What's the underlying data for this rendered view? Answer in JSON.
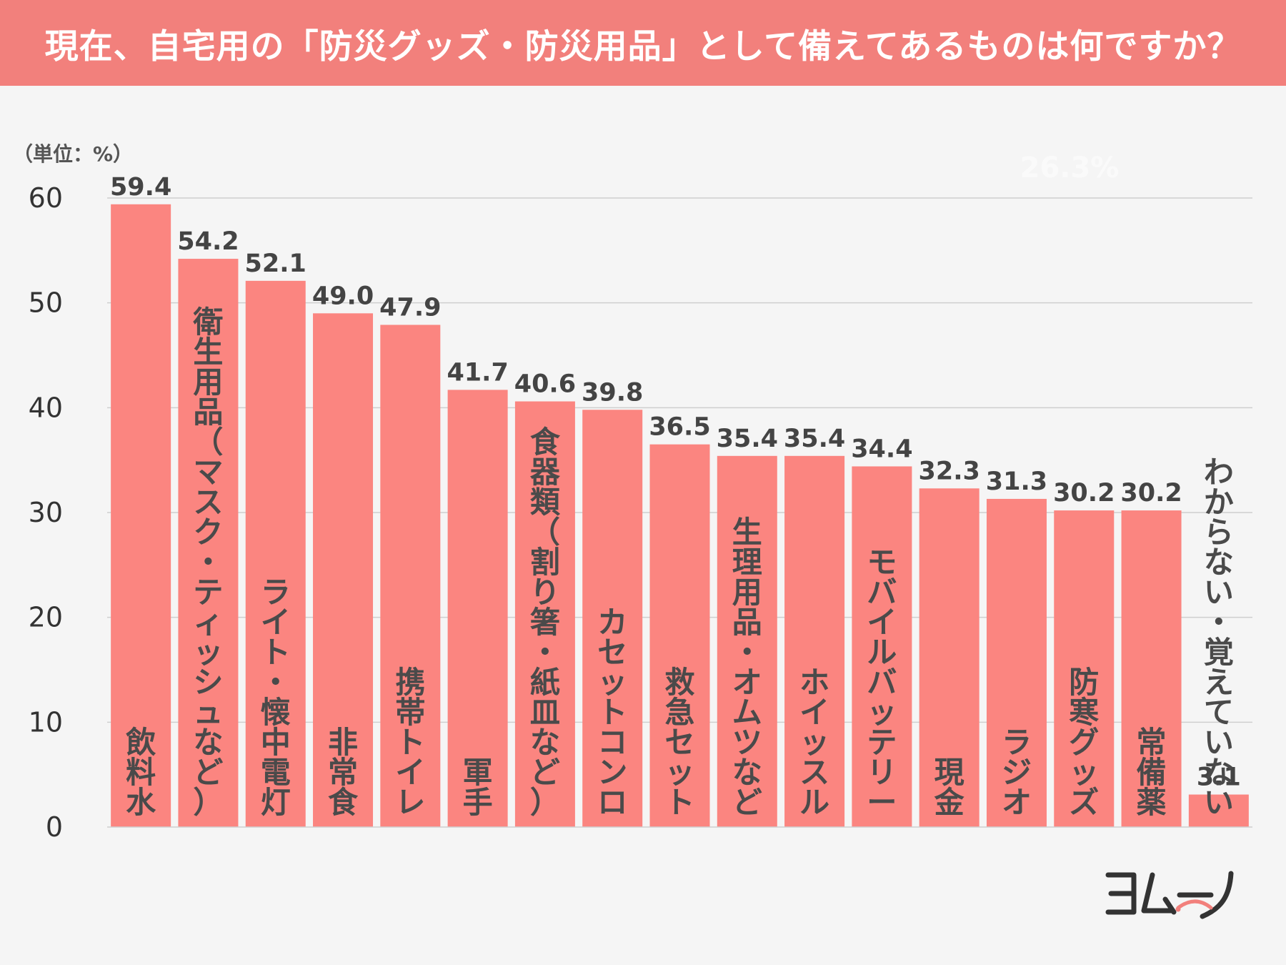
{
  "header": {
    "title": "現在、自宅用の「防災グッズ・防災用品」として備えてあるものは何ですか？"
  },
  "colors": {
    "header_bg": "#f2807c",
    "bar": "#fb8580",
    "gridline": "#cfcfcf",
    "background": "#f5f5f5"
  },
  "chart_data": {
    "type": "bar",
    "unit_label": "（単位：%）",
    "ylim": [
      0,
      60
    ],
    "yticks": [
      0,
      10,
      20,
      30,
      40,
      50,
      60
    ],
    "grid": true,
    "categories": [
      "飲料水",
      "衛生用品（マスク・ティッシュなど）",
      "ライト・懐中電灯",
      "非常食",
      "携帯トイレ",
      "軍手",
      "食器類（割り箸・紙皿など）",
      "カセットコンロ",
      "救急セット",
      "生理用品・オムツなど",
      "ホイッスル",
      "モバイルバッテリー",
      "現金",
      "ラジオ",
      "防寒グッズ",
      "常備薬",
      "わからない・覚えていない"
    ],
    "values": [
      59.4,
      54.2,
      52.1,
      49.0,
      47.9,
      41.7,
      40.6,
      39.8,
      36.5,
      35.4,
      35.4,
      34.4,
      32.3,
      31.3,
      30.2,
      30.2,
      3.1
    ],
    "value_labels": [
      "59.4",
      "54.2",
      "52.1",
      "49.0",
      "47.9",
      "41.7",
      "40.6",
      "39.8",
      "36.5",
      "35.4",
      "35.4",
      "34.4",
      "32.3",
      "31.3",
      "30.2",
      "30.2",
      "3.1"
    ],
    "watermark": "26.3%"
  },
  "logo": {
    "text": "ヨムーノ",
    "icon": "yomuno-logo"
  }
}
